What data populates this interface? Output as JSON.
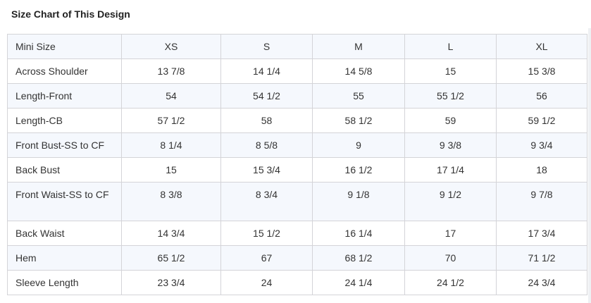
{
  "title": "Size Chart of This Design",
  "table": {
    "header": [
      "Mini Size",
      "XS",
      "S",
      "M",
      "L",
      "XL"
    ],
    "rows": [
      [
        "Across Shoulder",
        "13 7/8",
        "14 1/4",
        "14 5/8",
        "15",
        "15 3/8"
      ],
      [
        "Length-Front",
        "54",
        "54 1/2",
        "55",
        "55 1/2",
        "56"
      ],
      [
        "Length-CB",
        "57 1/2",
        "58",
        "58 1/2",
        "59",
        "59 1/2"
      ],
      [
        "Front Bust-SS to CF",
        "8 1/4",
        "8 5/8",
        "9",
        "9 3/8",
        "9 3/4"
      ],
      [
        "Back Bust",
        "15",
        "15 3/4",
        "16 1/2",
        "17 1/4",
        "18"
      ],
      [
        "Front Waist-SS to CF",
        "8 3/8",
        "8 3/4",
        "9 1/8",
        "9 1/2",
        "9 7/8"
      ],
      [
        "Back Waist",
        "14 3/4",
        "15 1/2",
        "16 1/4",
        "17",
        "17 3/4"
      ],
      [
        "Hem",
        "65 1/2",
        "67",
        "68 1/2",
        "70",
        "71 1/2"
      ],
      [
        "Sleeve Length",
        "23 3/4",
        "24",
        "24 1/4",
        "24 1/2",
        "24 3/4"
      ]
    ]
  }
}
